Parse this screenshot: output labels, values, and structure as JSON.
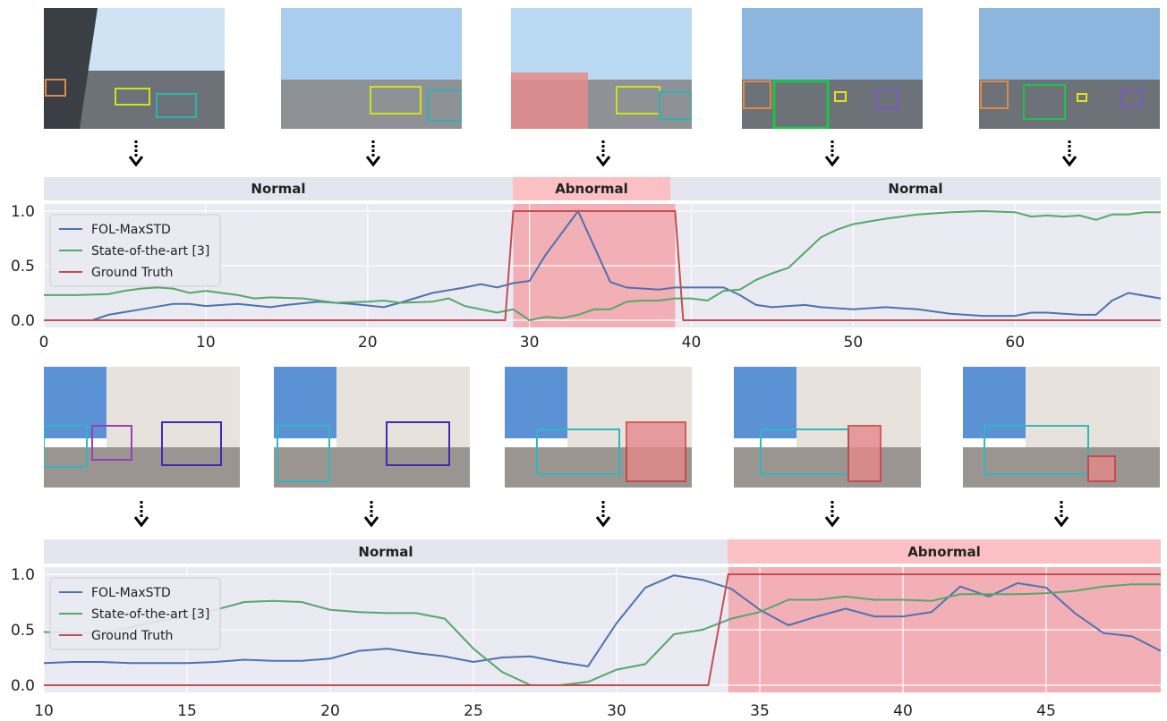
{
  "colors": {
    "fol": "#4c72b0",
    "sota": "#55a868",
    "gt": "#c44e52",
    "plot_bg": "#eaeaf2",
    "normal_band": "#e4e5ef",
    "abnormal_band": "#fbc0c3",
    "abnormal_fill": "#f4a5ab"
  },
  "top_panel": {
    "phases": [
      "Normal",
      "Abnormal",
      "Normal"
    ],
    "thumbnails": [
      "highway-scene-1",
      "highway-scene-2",
      "highway-scene-3",
      "highway-scene-4",
      "highway-scene-5"
    ]
  },
  "bottom_panel": {
    "phases": [
      "Normal",
      "Abnormal"
    ],
    "thumbnails": [
      "street-scene-1",
      "street-scene-2",
      "street-scene-3",
      "street-scene-4",
      "street-scene-5"
    ]
  },
  "chart_data": [
    {
      "type": "line",
      "title": "",
      "xlabel": "",
      "ylabel": "",
      "xlim": [
        0,
        69
      ],
      "ylim": [
        0,
        1
      ],
      "xticks": [
        "0",
        "10",
        "20",
        "30",
        "40",
        "50",
        "60"
      ],
      "yticks": [
        "0.0",
        "0.5",
        "1.0"
      ],
      "grid": true,
      "legend": "top-left",
      "abnormal_range": [
        29,
        39
      ],
      "series": [
        {
          "name": "FOL-MaxSTD",
          "x": [
            3,
            4,
            6,
            8,
            9,
            10,
            12,
            14,
            15,
            17,
            19,
            21,
            22,
            24,
            26,
            27,
            28,
            29,
            30,
            31,
            33,
            35,
            36,
            38,
            39,
            40,
            42,
            43,
            44,
            45,
            47,
            48,
            50,
            52,
            54,
            56,
            58,
            60,
            61,
            62,
            63,
            64,
            65,
            66,
            67,
            69
          ],
          "y": [
            0,
            0.05,
            0.1,
            0.15,
            0.15,
            0.13,
            0.15,
            0.12,
            0.14,
            0.17,
            0.15,
            0.12,
            0.16,
            0.25,
            0.3,
            0.33,
            0.3,
            0.34,
            0.36,
            0.6,
            1.0,
            0.35,
            0.3,
            0.28,
            0.3,
            0.3,
            0.3,
            0.23,
            0.14,
            0.12,
            0.14,
            0.12,
            0.1,
            0.12,
            0.1,
            0.06,
            0.04,
            0.04,
            0.07,
            0.07,
            0.06,
            0.05,
            0.05,
            0.18,
            0.25,
            0.2
          ]
        },
        {
          "name": "State-of-the-art [3]",
          "x": [
            0,
            2,
            4,
            5,
            6,
            7,
            8,
            9,
            10,
            12,
            13,
            14,
            16,
            17,
            18,
            20,
            21,
            22,
            24,
            25,
            26,
            28,
            29,
            30,
            31,
            32,
            33,
            34,
            35,
            36,
            37,
            38,
            39,
            40,
            41,
            42,
            43,
            44,
            45,
            46,
            47,
            48,
            49,
            50,
            52,
            54,
            56,
            58,
            60,
            61,
            62,
            63,
            64,
            65,
            66,
            67,
            68,
            69
          ],
          "y": [
            0.23,
            0.23,
            0.24,
            0.27,
            0.29,
            0.3,
            0.29,
            0.25,
            0.27,
            0.23,
            0.2,
            0.21,
            0.2,
            0.18,
            0.16,
            0.17,
            0.18,
            0.16,
            0.17,
            0.2,
            0.13,
            0.07,
            0.1,
            0.0,
            0.03,
            0.02,
            0.05,
            0.1,
            0.1,
            0.17,
            0.18,
            0.18,
            0.2,
            0.2,
            0.18,
            0.27,
            0.28,
            0.37,
            0.43,
            0.48,
            0.62,
            0.76,
            0.83,
            0.88,
            0.93,
            0.97,
            0.99,
            1.0,
            0.99,
            0.95,
            0.96,
            0.95,
            0.96,
            0.92,
            0.97,
            0.97,
            0.99,
            0.99
          ]
        },
        {
          "name": "Ground Truth",
          "x": [
            0,
            28.5,
            29,
            39,
            39.5,
            69
          ],
          "y": [
            0,
            0,
            1,
            1,
            0,
            0
          ]
        }
      ]
    },
    {
      "type": "line",
      "title": "",
      "xlabel": "",
      "ylabel": "",
      "xlim": [
        10,
        49
      ],
      "ylim": [
        0,
        1
      ],
      "xticks": [
        "10",
        "15",
        "20",
        "25",
        "30",
        "35",
        "40",
        "45"
      ],
      "yticks": [
        "0.0",
        "0.5",
        "1.0"
      ],
      "grid": true,
      "legend": "top-left",
      "abnormal_range": [
        33.9,
        49
      ],
      "series": [
        {
          "name": "FOL-MaxSTD",
          "x": [
            10,
            11,
            12,
            13,
            14,
            15,
            16,
            17,
            18,
            19,
            20,
            21,
            22,
            23,
            24,
            25,
            26,
            27,
            28,
            29,
            30,
            31,
            32,
            33,
            34,
            35,
            36,
            37,
            38,
            39,
            40,
            41,
            42,
            43,
            44,
            45,
            46,
            47,
            48,
            49
          ],
          "y": [
            0.2,
            0.21,
            0.21,
            0.2,
            0.2,
            0.2,
            0.21,
            0.23,
            0.22,
            0.22,
            0.24,
            0.31,
            0.33,
            0.29,
            0.26,
            0.21,
            0.25,
            0.26,
            0.21,
            0.17,
            0.56,
            0.88,
            0.99,
            0.95,
            0.87,
            0.68,
            0.54,
            0.62,
            0.69,
            0.62,
            0.62,
            0.66,
            0.89,
            0.8,
            0.92,
            0.88,
            0.65,
            0.47,
            0.44,
            0.31
          ]
        },
        {
          "name": "State-of-the-art [3]",
          "x": [
            10,
            12,
            13,
            14,
            15,
            16,
            17,
            18,
            19,
            20,
            21,
            22,
            23,
            24,
            25,
            26,
            27,
            28,
            29,
            30,
            31,
            32,
            33,
            34,
            35,
            36,
            37,
            38,
            39,
            40,
            41,
            42,
            43,
            44,
            45,
            46,
            47,
            48,
            49
          ],
          "y": [
            0.48,
            0.47,
            0.52,
            0.58,
            0.62,
            0.68,
            0.75,
            0.76,
            0.75,
            0.68,
            0.66,
            0.65,
            0.65,
            0.6,
            0.33,
            0.12,
            0.0,
            0.0,
            0.03,
            0.14,
            0.19,
            0.46,
            0.5,
            0.6,
            0.66,
            0.77,
            0.77,
            0.8,
            0.77,
            0.77,
            0.76,
            0.82,
            0.82,
            0.82,
            0.83,
            0.85,
            0.89,
            0.91,
            0.91
          ]
        },
        {
          "name": "Ground Truth",
          "x": [
            10,
            33.2,
            33.9,
            49
          ],
          "y": [
            0,
            0,
            1,
            1
          ]
        }
      ]
    }
  ]
}
